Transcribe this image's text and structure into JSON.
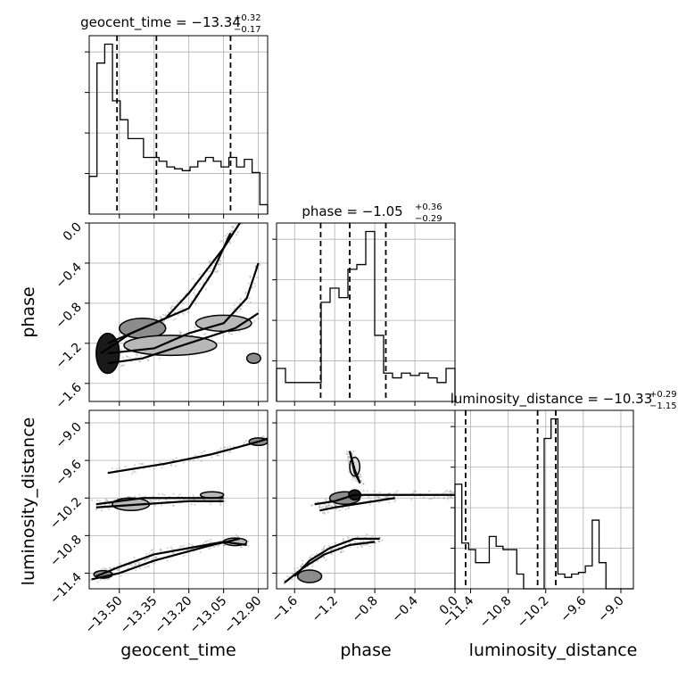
{
  "chart_data": {
    "type": "corner",
    "parameters": [
      {
        "name": "geocent_time",
        "axis_label": "geocent_time",
        "title": "geocent_time = −13.34",
        "title_plus": "+0.32",
        "title_minus": "−0.17",
        "range": [
          -13.63,
          -12.86
        ],
        "ticks": [
          -13.5,
          -13.35,
          -13.2,
          -13.05,
          -12.9
        ],
        "tick_labels": [
          "−13.50",
          "−13.35",
          "−13.20",
          "−13.05",
          "−12.90"
        ],
        "quantiles": [
          -13.51,
          -13.34,
          -13.02
        ],
        "hist_counts": [
          2,
          8,
          9,
          6,
          5,
          4,
          4,
          3,
          3,
          2.8,
          2.5,
          2.4,
          2.3,
          2.5,
          2.8,
          3,
          2.8,
          2.5,
          3,
          2.5,
          2.9,
          2.2,
          0.5
        ]
      },
      {
        "name": "phase",
        "axis_label": "phase",
        "title": "phase = −1.05",
        "title_plus": "+0.36",
        "title_minus": "−0.29",
        "range": [
          -1.78,
          0.0
        ],
        "ticks": [
          -1.6,
          -1.2,
          -0.8,
          -0.4,
          0.0
        ],
        "tick_labels": [
          "−1.6",
          "−1.2",
          "−0.8",
          "−0.4",
          "0.0"
        ],
        "quantiles": [
          -1.34,
          -1.05,
          -0.69
        ],
        "hist_counts": [
          0.7,
          0.4,
          0.4,
          0.4,
          0.4,
          2.1,
          2.4,
          2.2,
          2.8,
          2.9,
          3.6,
          1.4,
          0.6,
          0.5,
          0.6,
          0.55,
          0.6,
          0.5,
          0.4,
          0.7
        ]
      },
      {
        "name": "luminosity_distance",
        "axis_label": "luminosity_distance",
        "title": "luminosity_distance = −10.33",
        "title_plus": "+0.29",
        "title_minus": "−1.15",
        "range": [
          -11.65,
          -8.8
        ],
        "ticks": [
          -11.4,
          -10.8,
          -10.2,
          -9.6,
          -9.0
        ],
        "tick_labels": [
          "−11.4",
          "−10.8",
          "−10.2",
          "−9.6",
          "−9.0"
        ],
        "quantiles": [
          -11.48,
          -10.33,
          -10.04
        ],
        "hist_counts": [
          3.2,
          1.4,
          1.2,
          0.8,
          0.8,
          1.6,
          1.3,
          1.2,
          1.2,
          0.45,
          0.0,
          0.0,
          0.0,
          4.6,
          5.2,
          0.45,
          0.35,
          0.45,
          0.5,
          0.7,
          2.1,
          0.8,
          0.0,
          0.0,
          0.0,
          0.0
        ]
      }
    ],
    "pairs": [
      {
        "x": "geocent_time",
        "y": "phase",
        "blobs": [
          {
            "cx": -13.55,
            "cy": -1.3,
            "rx": 0.05,
            "ry": 0.2,
            "level": 4
          },
          {
            "cx": -13.4,
            "cy": -1.05,
            "rx": 0.1,
            "ry": 0.1,
            "level": 3
          },
          {
            "cx": -13.05,
            "cy": -1.0,
            "rx": 0.12,
            "ry": 0.08,
            "level": 2
          },
          {
            "cx": -13.28,
            "cy": -1.22,
            "rx": 0.2,
            "ry": 0.1,
            "level": 2
          },
          {
            "cx": -12.92,
            "cy": -1.35,
            "rx": 0.03,
            "ry": 0.05,
            "level": 3
          }
        ],
        "contours": [
          [
            [
              -13.58,
              -1.3
            ],
            [
              -13.45,
              -1.1
            ],
            [
              -13.3,
              -0.95
            ],
            [
              -13.2,
              -0.7
            ],
            [
              -13.05,
              -0.25
            ],
            [
              -12.98,
              0.0
            ]
          ],
          [
            [
              -13.55,
              -1.2
            ],
            [
              -13.35,
              -1.0
            ],
            [
              -13.2,
              -0.85
            ],
            [
              -13.1,
              -0.5
            ],
            [
              -13.02,
              -0.1
            ]
          ],
          [
            [
              -13.55,
              -1.3
            ],
            [
              -13.35,
              -1.25
            ],
            [
              -13.2,
              -1.1
            ],
            [
              -13.05,
              -1.0
            ],
            [
              -12.95,
              -0.75
            ],
            [
              -12.9,
              -0.4
            ]
          ],
          [
            [
              -13.55,
              -1.4
            ],
            [
              -13.4,
              -1.35
            ],
            [
              -13.2,
              -1.2
            ],
            [
              -13.0,
              -1.05
            ],
            [
              -12.9,
              -0.9
            ]
          ]
        ]
      },
      {
        "x": "geocent_time",
        "y": "luminosity_distance",
        "blobs": [
          {
            "cx": -13.45,
            "cy": -10.3,
            "rx": 0.08,
            "ry": 0.1,
            "level": 2
          },
          {
            "cx": -13.1,
            "cy": -10.15,
            "rx": 0.05,
            "ry": 0.05,
            "level": 2
          },
          {
            "cx": -12.9,
            "cy": -9.3,
            "rx": 0.04,
            "ry": 0.06,
            "level": 3
          },
          {
            "cx": -13.57,
            "cy": -11.42,
            "rx": 0.04,
            "ry": 0.06,
            "level": 3
          },
          {
            "cx": -13.0,
            "cy": -10.9,
            "rx": 0.05,
            "ry": 0.06,
            "level": 2
          }
        ],
        "contours": [
          [
            [
              -13.6,
              -10.3
            ],
            [
              -13.4,
              -10.2
            ],
            [
              -13.2,
              -10.2
            ],
            [
              -13.05,
              -10.2
            ]
          ],
          [
            [
              -13.6,
              -10.35
            ],
            [
              -13.4,
              -10.3
            ],
            [
              -13.2,
              -10.25
            ],
            [
              -13.05,
              -10.25
            ]
          ],
          [
            [
              -13.55,
              -9.8
            ],
            [
              -13.3,
              -9.65
            ],
            [
              -13.1,
              -9.5
            ],
            [
              -12.9,
              -9.3
            ],
            [
              -12.86,
              -9.25
            ]
          ],
          [
            [
              -13.6,
              -11.45
            ],
            [
              -13.5,
              -11.3
            ],
            [
              -13.35,
              -11.1
            ],
            [
              -13.2,
              -11.0
            ],
            [
              -13.05,
              -10.9
            ],
            [
              -12.95,
              -10.95
            ]
          ],
          [
            [
              -13.62,
              -11.5
            ],
            [
              -13.5,
              -11.4
            ],
            [
              -13.35,
              -11.2
            ],
            [
              -13.1,
              -10.95
            ],
            [
              -12.98,
              -10.85
            ]
          ]
        ]
      },
      {
        "x": "phase",
        "y": "luminosity_distance",
        "blobs": [
          {
            "cx": -1.1,
            "cy": -10.2,
            "rx": 0.15,
            "ry": 0.1,
            "level": 3
          },
          {
            "cx": -1.0,
            "cy": -10.15,
            "rx": 0.06,
            "ry": 0.08,
            "level": 4
          },
          {
            "cx": -1.45,
            "cy": -11.45,
            "rx": 0.12,
            "ry": 0.1,
            "level": 3
          },
          {
            "cx": -1.0,
            "cy": -9.7,
            "rx": 0.05,
            "ry": 0.15,
            "level": 1
          }
        ],
        "contours": [
          [
            [
              -1.4,
              -10.3
            ],
            [
              -1.2,
              -10.25
            ],
            [
              -1.0,
              -10.15
            ],
            [
              -0.6,
              -10.15
            ],
            [
              -0.2,
              -10.15
            ],
            [
              0.0,
              -10.15
            ]
          ],
          [
            [
              -1.35,
              -10.4
            ],
            [
              -1.2,
              -10.35
            ],
            [
              -1.0,
              -10.3
            ],
            [
              -0.6,
              -10.2
            ]
          ],
          [
            [
              -1.6,
              -11.45
            ],
            [
              -1.45,
              -11.2
            ],
            [
              -1.25,
              -11.0
            ],
            [
              -1.0,
              -10.85
            ],
            [
              -0.75,
              -10.85
            ]
          ],
          [
            [
              -1.7,
              -11.55
            ],
            [
              -1.5,
              -11.3
            ],
            [
              -1.3,
              -11.1
            ],
            [
              -1.05,
              -10.95
            ],
            [
              -0.8,
              -10.9
            ]
          ],
          [
            [
              -1.05,
              -9.45
            ],
            [
              -1.0,
              -9.75
            ],
            [
              -0.95,
              -9.95
            ],
            [
              -1.0,
              -9.8
            ],
            [
              -1.05,
              -9.45
            ]
          ]
        ]
      }
    ],
    "grid": true
  }
}
